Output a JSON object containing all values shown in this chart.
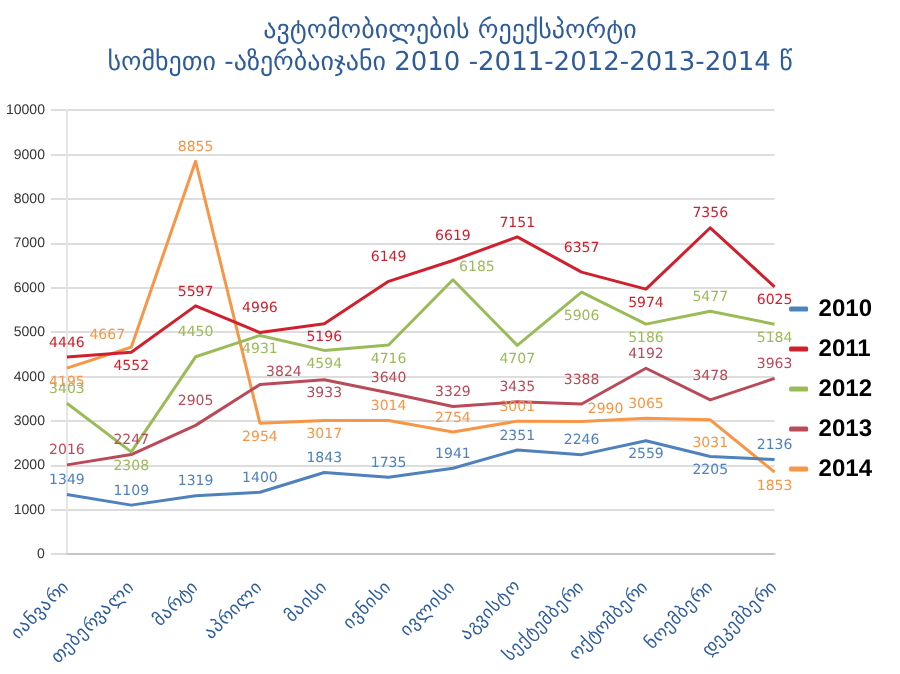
{
  "chart_data": {
    "type": "line",
    "title": "ავტომობილების  რეექსპორტი",
    "subtitle": "სომხეთი -აზერბაიჯანი 2010 -2011-2012-2013-2014 წ",
    "categories": [
      "იანვარი",
      "თებერვალი",
      "მარტი",
      "აპრილი",
      "მაისი",
      "ივნისი",
      "ივლისი",
      "აგვისტო",
      "სექტემბერი",
      "ოქტომბერი",
      "ნოემბერი",
      "დეკემბერი"
    ],
    "series": [
      {
        "name": "2010",
        "color": "#4f81bd",
        "values": [
          1349,
          1109,
          1319,
          1400,
          1843,
          1735,
          1941,
          2351,
          2246,
          2559,
          2205,
          2136
        ]
      },
      {
        "name": "2011",
        "color": "#d0202e",
        "values": [
          4446,
          4552,
          5597,
          4996,
          5196,
          6149,
          6619,
          7151,
          6357,
          5974,
          7356,
          6025
        ]
      },
      {
        "name": "2012",
        "color": "#9bbb59",
        "values": [
          3403,
          2308,
          4450,
          4931,
          4594,
          4716,
          6185,
          4707,
          5906,
          5186,
          5477,
          5184
        ]
      },
      {
        "name": "2013",
        "color": "#b94a5a",
        "values": [
          2016,
          2247,
          2905,
          3824,
          3933,
          3640,
          3329,
          3435,
          3388,
          4192,
          3478,
          3963
        ]
      },
      {
        "name": "2014",
        "color": "#f79646",
        "values": [
          4195,
          4667,
          8855,
          2954,
          3017,
          3014,
          2754,
          3001,
          2990,
          3065,
          3031,
          1853
        ]
      }
    ],
    "ylim": [
      0,
      10000
    ],
    "yticks": [
      0,
      1000,
      2000,
      3000,
      4000,
      5000,
      6000,
      7000,
      8000,
      9000,
      10000
    ],
    "grid": "y",
    "legend": "right",
    "data_labels": true,
    "line_style": "solid"
  }
}
